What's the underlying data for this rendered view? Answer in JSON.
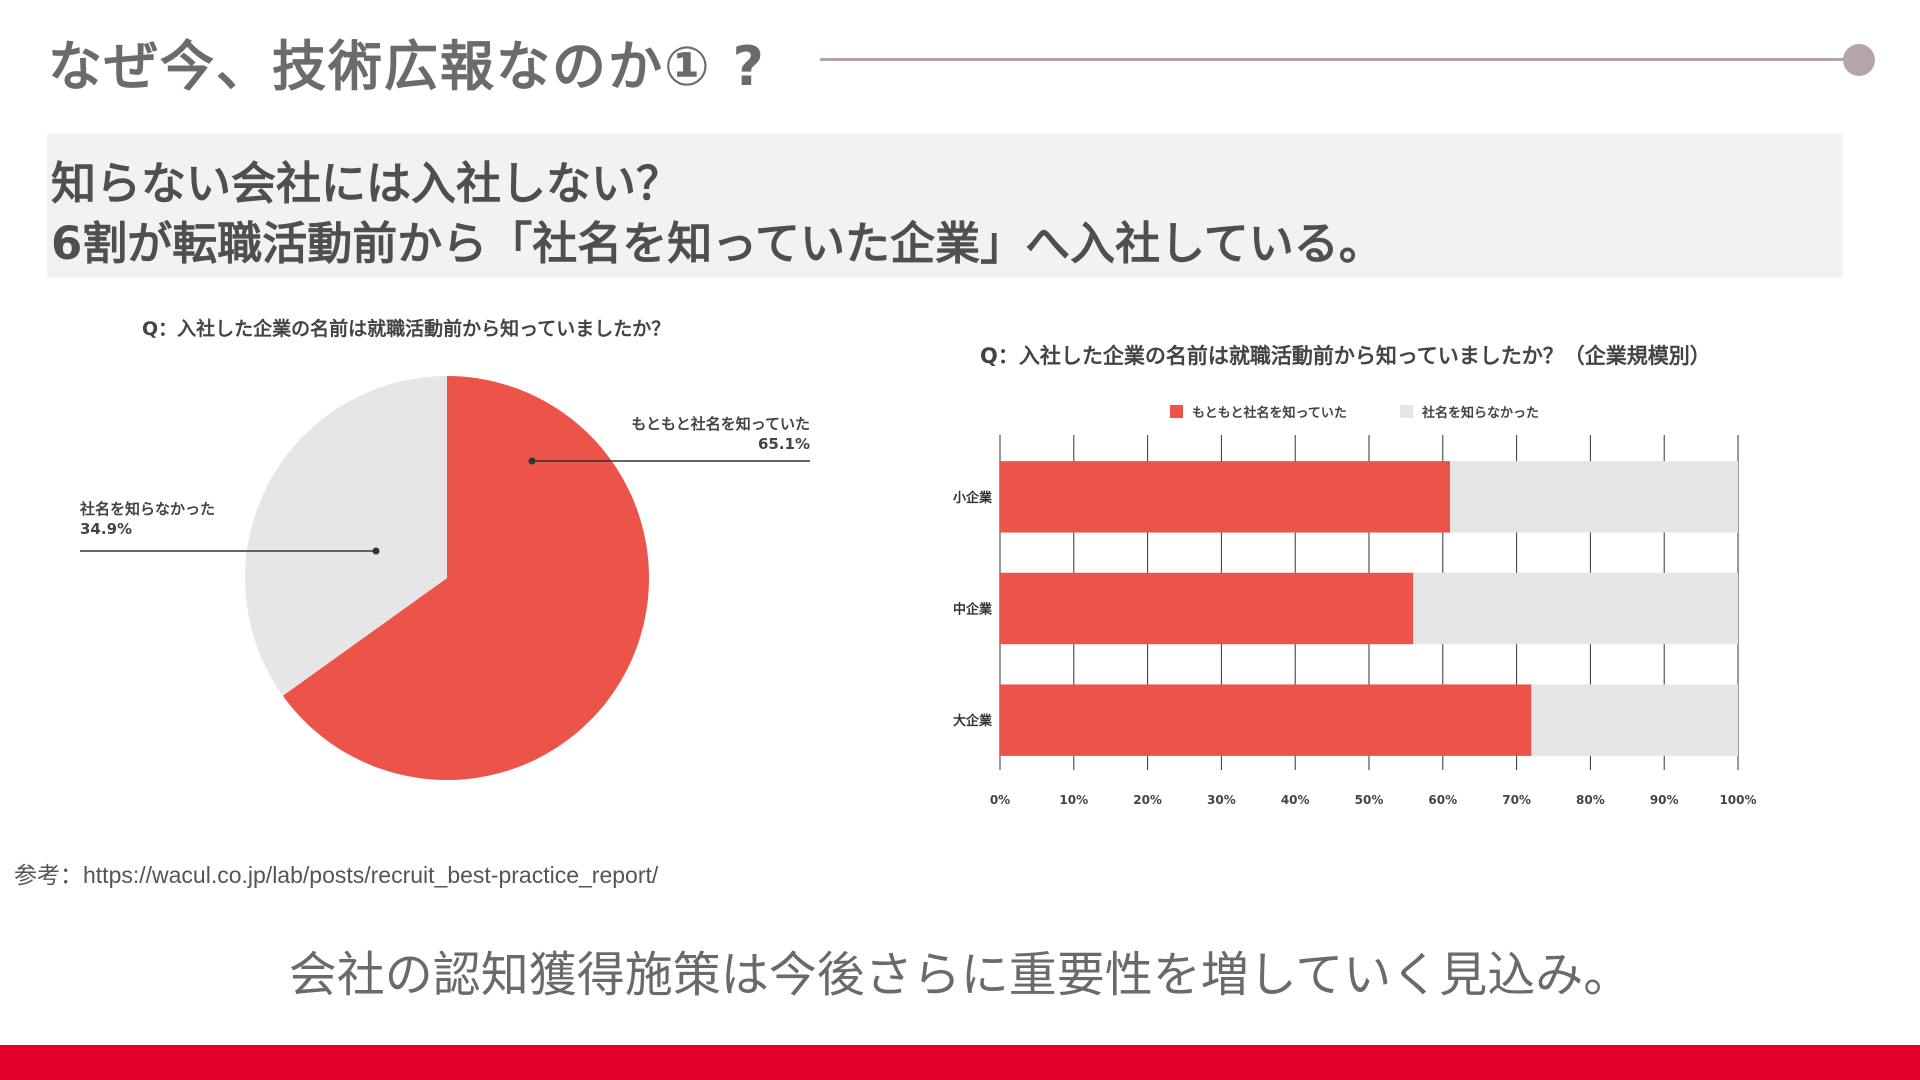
{
  "header": {
    "title": "なぜ今、技術広報なのか① ?",
    "accent_color": "#b5a4aa"
  },
  "headline": {
    "line1": "知らない会社には入社しない？",
    "line2": "6割が転職活動前から「社名を知っていた企業」へ入社している。"
  },
  "chart_data": [
    {
      "type": "pie",
      "title": "Q：入社した企業の名前は就職活動前から知っていましたか？",
      "slices": [
        {
          "name": "もともと社名を知っていた",
          "value": 65.1,
          "label": "65.1%",
          "color": "#ec5349"
        },
        {
          "name": "社名を知らなかった",
          "value": 34.9,
          "label": "34.9%",
          "color": "#e6e6e6"
        }
      ]
    },
    {
      "type": "bar",
      "orientation": "horizontal",
      "stacked": true,
      "title": "Q：入社した企業の名前は就職活動前から知っていましたか？（企業規模別）",
      "categories": [
        "小企業",
        "中企業",
        "大企業"
      ],
      "series": [
        {
          "name": "もともと社名を知っていた",
          "values": [
            61,
            56,
            72
          ],
          "color": "#ec5349"
        },
        {
          "name": "社名を知らなかった",
          "values": [
            39,
            44,
            28
          ],
          "color": "#e6e6e6"
        }
      ],
      "x_ticks": [
        "0%",
        "10%",
        "20%",
        "30%",
        "40%",
        "50%",
        "60%",
        "70%",
        "80%",
        "90%",
        "100%"
      ],
      "xlim": [
        0,
        100
      ],
      "legend": "top",
      "grid": true
    }
  ],
  "source": "参考：https://wacul.co.jp/lab/posts/recruit_best-practice_report/",
  "conclusion": "会社の認知獲得施策は今後さらに重要性を増していく見込み。",
  "footer": {
    "color": "#e4002b"
  }
}
